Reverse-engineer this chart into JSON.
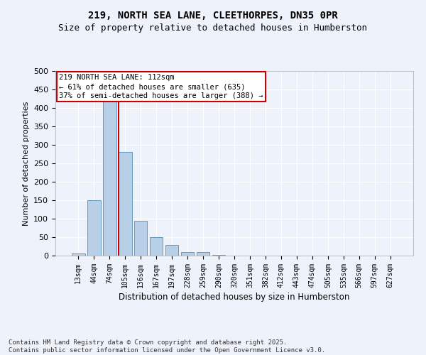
{
  "title_line1": "219, NORTH SEA LANE, CLEETHORPES, DN35 0PR",
  "title_line2": "Size of property relative to detached houses in Humberston",
  "xlabel": "Distribution of detached houses by size in Humberston",
  "ylabel": "Number of detached properties",
  "categories": [
    "13sqm",
    "44sqm",
    "74sqm",
    "105sqm",
    "136sqm",
    "167sqm",
    "197sqm",
    "228sqm",
    "259sqm",
    "290sqm",
    "320sqm",
    "351sqm",
    "382sqm",
    "412sqm",
    "443sqm",
    "474sqm",
    "505sqm",
    "535sqm",
    "566sqm",
    "597sqm",
    "627sqm"
  ],
  "values": [
    5,
    150,
    420,
    280,
    95,
    50,
    28,
    10,
    10,
    2,
    0,
    0,
    0,
    0,
    0,
    0,
    0,
    0,
    0,
    0,
    0
  ],
  "bar_color": "#b8cfe8",
  "bar_edge_color": "#6699bb",
  "vline_color": "#cc0000",
  "annotation_text": "219 NORTH SEA LANE: 112sqm\n← 61% of detached houses are smaller (635)\n37% of semi-detached houses are larger (388) →",
  "annotation_box_color": "#ffffff",
  "annotation_box_edge_color": "#cc0000",
  "ylim": [
    0,
    500
  ],
  "yticks": [
    0,
    50,
    100,
    150,
    200,
    250,
    300,
    350,
    400,
    450,
    500
  ],
  "background_color": "#eef2fa",
  "footer_text": "Contains HM Land Registry data © Crown copyright and database right 2025.\nContains public sector information licensed under the Open Government Licence v3.0.",
  "title_fontsize": 10,
  "subtitle_fontsize": 9,
  "grid_color": "#ffffff"
}
